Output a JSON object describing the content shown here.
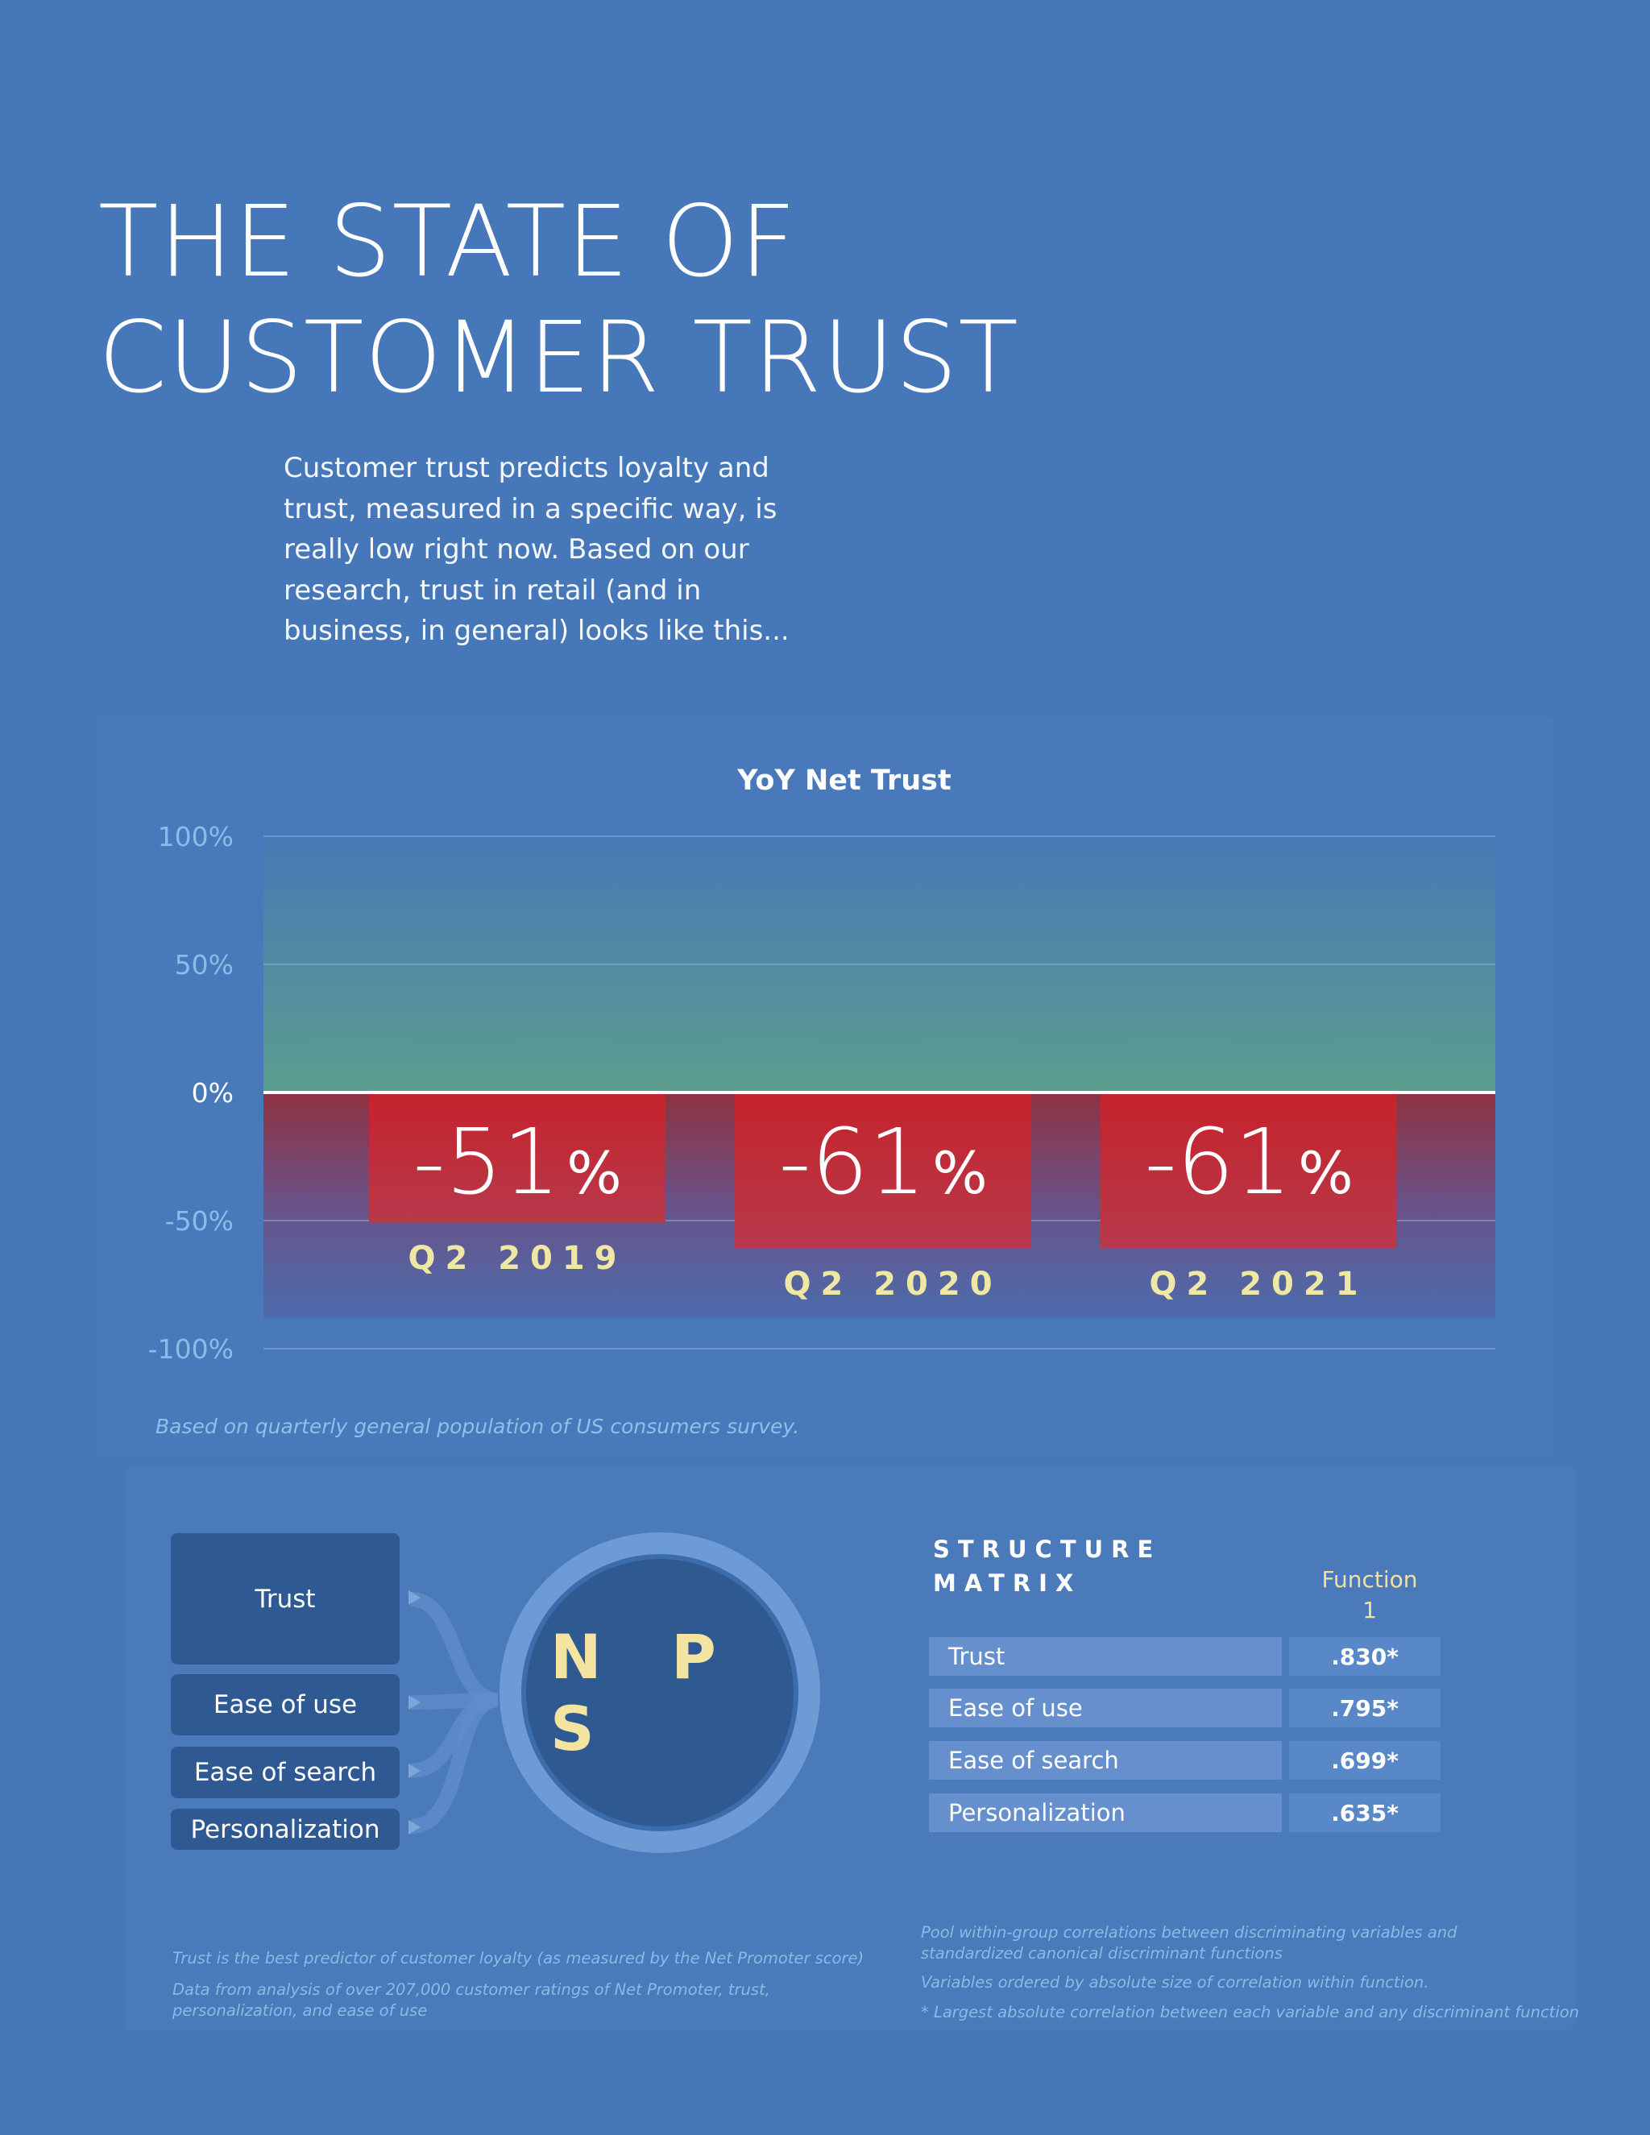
{
  "page": {
    "title_lines": [
      "THE STATE OF",
      "CUSTOMER TRUST"
    ],
    "intro": "Customer trust predicts loyalty and trust, measured in a specific way, is really low right now. Based on our research, trust in retail (and in business, in general) looks like this..."
  },
  "colors": {
    "background": "#4677b9",
    "positive_zone": "#5a9c8f",
    "negative_zone": "#8a3845",
    "bar": "#c0262e",
    "period_label": "#efe7a4",
    "axis_tick": "#88bde9"
  },
  "chart_data": {
    "type": "bar",
    "title": "YoY Net Trust",
    "categories": [
      "Q2 2019",
      "Q2 2020",
      "Q2 2021"
    ],
    "values": [
      -51,
      -61,
      -61
    ],
    "data_labels": [
      {
        "number": "-51",
        "unit": "%"
      },
      {
        "number": "-61",
        "unit": "%"
      },
      {
        "number": "-61",
        "unit": "%"
      }
    ],
    "yticks": [
      "100%",
      "50%",
      "0%",
      "-50%",
      "-100%"
    ],
    "ytick_values": [
      100,
      50,
      0,
      -50,
      -100
    ],
    "ylim": [
      -100,
      100
    ],
    "xlabel": "",
    "ylabel": "",
    "grid": true,
    "note": "Based on quarterly general population of US consumers survey."
  },
  "diagram": {
    "factors": [
      "Trust",
      "Ease of use",
      "Ease of search",
      "Personalization"
    ],
    "target": "N P S",
    "footnotes": [
      "Trust is the best predictor of customer loyalty (as measured by the Net Promoter score)",
      "Data from analysis of over 207,000 customer ratings of Net Promoter, trust, personalization, and ease of use"
    ]
  },
  "structure_matrix": {
    "heading_lines": [
      "STRUCTURE",
      "MATRIX"
    ],
    "column_header_lines": [
      "Function",
      "1"
    ],
    "rows": [
      {
        "label": "Trust",
        "value": ".830*"
      },
      {
        "label": "Ease of use",
        "value": ".795*"
      },
      {
        "label": "Ease of search",
        "value": ".699*"
      },
      {
        "label": "Personalization",
        "value": ".635*"
      }
    ],
    "footnotes": [
      "Pool within-group correlations between discriminating variables and standardized canonical discriminant functions",
      "Variables ordered by absolute size of correlation within function.",
      "* Largest absolute correlation between each variable and any discriminant function"
    ]
  }
}
